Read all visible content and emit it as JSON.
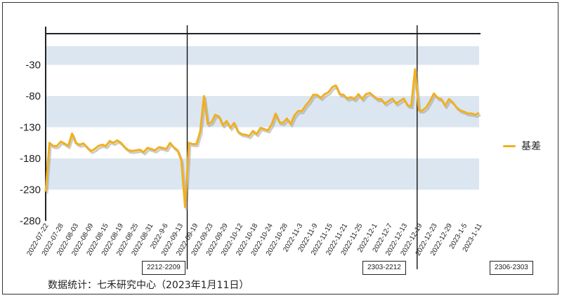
{
  "chart_data": {
    "type": "line",
    "series": [
      {
        "name": "基差",
        "color": "#F0B020",
        "x": [
          "2022-07-22",
          "2022-07-25",
          "2022-07-26",
          "2022-07-27",
          "2022-07-28",
          "2022-08-01",
          "2022-08-02",
          "2022-08-03",
          "2022-08-04",
          "2022-08-05",
          "2022-08-08",
          "2022-08-09",
          "2022-08-10",
          "2022-08-11",
          "2022-08-12",
          "2022-08-15",
          "2022-08-16",
          "2022-08-17",
          "2022-08-18",
          "2022-08-19",
          "2022-08-22",
          "2022-08-23",
          "2022-08-24",
          "2022-08-25",
          "2022-08-26",
          "2022-08-29",
          "2022-08-30",
          "2022-08-31",
          "2022-09-01",
          "2022-09-02",
          "2022-09-05",
          "2022-09-06",
          "2022-09-07",
          "2022-09-08",
          "2022-09-09",
          "2022-09-13",
          "2022-09-14",
          "2022-09-15",
          "2022-09-16",
          "2022-09-19",
          "2022-09-20",
          "2022-09-21",
          "2022-09-22",
          "2022-09-23",
          "2022-09-26",
          "2022-09-27",
          "2022-09-28",
          "2022-09-29",
          "2022-09-30",
          "2022-10-10",
          "2022-10-11",
          "2022-10-12",
          "2022-10-13",
          "2022-10-14",
          "2022-10-17",
          "2022-10-18",
          "2022-10-19",
          "2022-10-20",
          "2022-10-21",
          "2022-10-24",
          "2022-10-25",
          "2022-10-26",
          "2022-10-27",
          "2022-10-28",
          "2022-10-31",
          "2022-11-01",
          "2022-11-02",
          "2022-11-03",
          "2022-11-04",
          "2022-11-07",
          "2022-11-08",
          "2022-11-09",
          "2022-11-10",
          "2022-11-11",
          "2022-11-14",
          "2022-11-15",
          "2022-11-16",
          "2022-11-17",
          "2022-11-18",
          "2022-11-21",
          "2022-11-22",
          "2022-11-23",
          "2022-11-24",
          "2022-11-25",
          "2022-11-28",
          "2022-11-29",
          "2022-11-30",
          "2022-12-01",
          "2022-12-02",
          "2022-12-05",
          "2022-12-06",
          "2022-12-07",
          "2022-12-08",
          "2022-12-09",
          "2022-12-12",
          "2022-12-13",
          "2022-12-14",
          "2022-12-15",
          "2022-12-16",
          "2022-12-19",
          "2022-12-20",
          "2022-12-21",
          "2022-12-22",
          "2022-12-23",
          "2022-12-26",
          "2022-12-27",
          "2022-12-28",
          "2022-12-29",
          "2022-12-30",
          "2023-01-03",
          "2023-01-04",
          "2023-01-05",
          "2023-01-06",
          "2023-01-09",
          "2023-01-10",
          "2023-01-11"
        ],
        "values": [
          -233,
          -155,
          -160,
          -160,
          -153,
          -156,
          -160,
          -140,
          -155,
          -158,
          -156,
          -162,
          -168,
          -165,
          -160,
          -158,
          -160,
          -152,
          -155,
          -151,
          -155,
          -162,
          -167,
          -168,
          -167,
          -166,
          -170,
          -163,
          -165,
          -167,
          -162,
          -163,
          -165,
          -155,
          -162,
          -167,
          -183,
          -258,
          -155,
          -157,
          -157,
          -137,
          -80,
          -125,
          -122,
          -110,
          -113,
          -127,
          -120,
          -131,
          -123,
          -137,
          -141,
          -142,
          -144,
          -136,
          -141,
          -131,
          -133,
          -135,
          -125,
          -108,
          -122,
          -123,
          -116,
          -125,
          -111,
          -104,
          -104,
          -95,
          -88,
          -78,
          -78,
          -83,
          -77,
          -74,
          -66,
          -63,
          -77,
          -78,
          -84,
          -82,
          -85,
          -77,
          -85,
          -77,
          -75,
          -80,
          -85,
          -85,
          -92,
          -88,
          -84,
          -92,
          -88,
          -84,
          -95,
          -96,
          -37,
          -103,
          -103,
          -98,
          -88,
          -76,
          -83,
          -85,
          -96,
          -85,
          -90,
          -98,
          -103,
          -105,
          -108,
          -108,
          -110,
          -107
        ]
      }
    ],
    "xtick_labels": [
      "2022-07-22",
      "2022-07-28",
      "2022-08-03",
      "2022-08-09",
      "2022-08-15",
      "2022-08-19",
      "2022-08-25",
      "2022-08-31",
      "2022-9-6",
      "2022-09-13",
      "2022-09-19",
      "2022-09-23",
      "2022-09-29",
      "2022-10-12",
      "2022-10-18",
      "2022-10-24",
      "2022-10-28",
      "2022-11-3",
      "2022-11-9",
      "2022-11-15",
      "2022-11-21",
      "2022-11-25",
      "2022-12-1",
      "2022-12-7",
      "2022-12-13",
      "2022-12-19",
      "2022-12-23",
      "2022-12-29",
      "2023-1-5",
      "2023-1-11"
    ],
    "ytick_labels": [
      "-30",
      "-80",
      "-130",
      "-180",
      "-230",
      "-280"
    ],
    "ylim": [
      -280,
      20
    ],
    "grid": "horizontal-bands",
    "band_color": "#DCE6F1",
    "legend_position": "right",
    "contract_markers": [
      {
        "label": "2212-2209",
        "at_index": 37
      },
      {
        "label": "2303-2212",
        "at_index": 98
      },
      {
        "label": "2306-2303",
        "at_index": null
      }
    ],
    "source": "数据统计：七禾研究中心（2023年1月11日）"
  }
}
